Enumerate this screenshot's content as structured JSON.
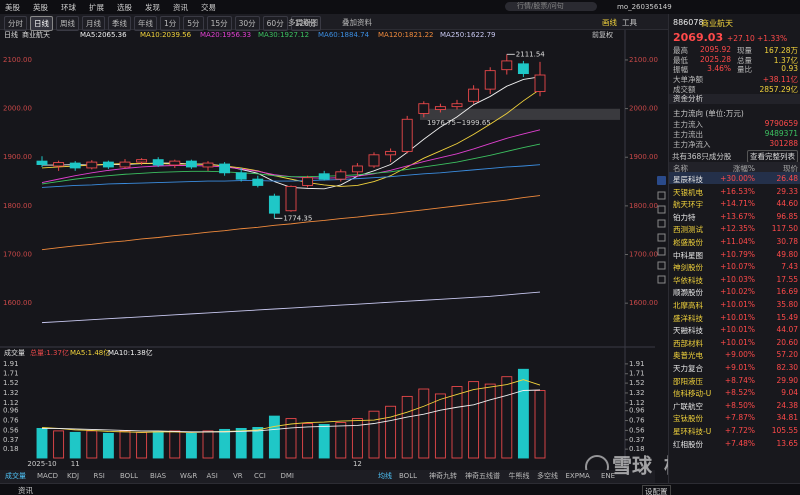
{
  "menu": [
    "美股",
    "英股",
    "环球",
    "扩展",
    "选股",
    "发现",
    "资讯",
    "交易"
  ],
  "search_placeholder": "行情/股票/问句",
  "user": "mo_260356149",
  "periods": [
    "分时",
    "日线",
    "周线",
    "月线",
    "季线",
    "年线",
    "1分",
    "5分",
    "15分",
    "30分",
    "60分",
    "120分"
  ],
  "multi_period": "多周期图",
  "overlay": "叠加资料",
  "toolbar_right": [
    "画线",
    "工具"
  ],
  "add_watch": "加自选",
  "chart_data": [
    {
      "type": "candlestick",
      "title": "日线",
      "name": "商业航天",
      "adjust": "前复权",
      "up_color": "#e8484a",
      "down_color": "#1fc7c7",
      "ylim": [
        1514,
        2141
      ],
      "yticks": [
        {
          "value": 2100,
          "label": "2100.00"
        },
        {
          "value": 2000,
          "label": "2000.00"
        },
        {
          "value": 1900,
          "label": "1900.00"
        },
        {
          "value": 1800,
          "label": "1800.00"
        },
        {
          "value": 1700,
          "label": "1700.00"
        },
        {
          "value": 1600,
          "label": "1600.00"
        }
      ],
      "candles": [
        {
          "open": 1892,
          "high": 1902,
          "low": 1880,
          "close": 1885
        },
        {
          "open": 1882,
          "high": 1893,
          "low": 1872,
          "close": 1889
        },
        {
          "open": 1888,
          "high": 1892,
          "low": 1872,
          "close": 1878
        },
        {
          "open": 1878,
          "high": 1894,
          "low": 1875,
          "close": 1890
        },
        {
          "open": 1890,
          "high": 1893,
          "low": 1876,
          "close": 1880
        },
        {
          "open": 1880,
          "high": 1896,
          "low": 1876,
          "close": 1890
        },
        {
          "open": 1890,
          "high": 1898,
          "low": 1884,
          "close": 1895
        },
        {
          "open": 1895,
          "high": 1900,
          "low": 1880,
          "close": 1884
        },
        {
          "open": 1884,
          "high": 1895,
          "low": 1878,
          "close": 1892
        },
        {
          "open": 1892,
          "high": 1895,
          "low": 1876,
          "close": 1880
        },
        {
          "open": 1880,
          "high": 1892,
          "low": 1872,
          "close": 1888
        },
        {
          "open": 1886,
          "high": 1890,
          "low": 1862,
          "close": 1868
        },
        {
          "open": 1868,
          "high": 1878,
          "low": 1850,
          "close": 1855
        },
        {
          "open": 1855,
          "high": 1862,
          "low": 1838,
          "close": 1842
        },
        {
          "open": 1820,
          "high": 1825,
          "low": 1774.35,
          "close": 1785
        },
        {
          "open": 1790,
          "high": 1842,
          "low": 1788,
          "close": 1840
        },
        {
          "open": 1842,
          "high": 1862,
          "low": 1838,
          "close": 1858
        },
        {
          "open": 1866,
          "high": 1872,
          "low": 1852,
          "close": 1855
        },
        {
          "open": 1855,
          "high": 1875,
          "low": 1850,
          "close": 1870
        },
        {
          "open": 1870,
          "high": 1888,
          "low": 1862,
          "close": 1882
        },
        {
          "open": 1882,
          "high": 1910,
          "low": 1878,
          "close": 1905
        },
        {
          "open": 1905,
          "high": 1918,
          "low": 1890,
          "close": 1912
        },
        {
          "open": 1912,
          "high": 1985,
          "low": 1908,
          "close": 1978
        },
        {
          "open": 1990,
          "high": 2015,
          "low": 1982,
          "close": 2010
        },
        {
          "open": 1998,
          "high": 2010,
          "low": 1992,
          "close": 2004
        },
        {
          "open": 2004,
          "high": 2018,
          "low": 1998,
          "close": 2010
        },
        {
          "open": 2015,
          "high": 2048,
          "low": 2010,
          "close": 2040
        },
        {
          "open": 2040,
          "high": 2085,
          "low": 2030,
          "close": 2078
        },
        {
          "open": 2080,
          "high": 2111.54,
          "low": 2070,
          "close": 2098
        },
        {
          "open": 2092,
          "high": 2098,
          "low": 2065,
          "close": 2072
        },
        {
          "open": 2035,
          "high": 2095.92,
          "low": 2025.28,
          "close": 2069.03
        }
      ],
      "series": [
        {
          "name": "MA5:2065.36",
          "color": "#f0f0f0",
          "values": [
            1884,
            1884,
            1885,
            1884,
            1885,
            1885,
            1887,
            1888,
            1888,
            1886,
            1886,
            1882,
            1875,
            1867,
            1850,
            1838,
            1836,
            1835,
            1843,
            1861,
            1872,
            1885,
            1910,
            1937,
            1962,
            1983,
            2008,
            2025,
            2046,
            2060,
            2065.36
          ]
        },
        {
          "name": "MA10:2039.56",
          "color": "#f2d33c",
          "values": [
            1878,
            1880,
            1882,
            1884,
            1886,
            1887,
            1887,
            1887,
            1886,
            1886,
            1885,
            1882,
            1878,
            1872,
            1862,
            1855,
            1848,
            1843,
            1840,
            1842,
            1850,
            1862,
            1880,
            1898,
            1913,
            1928,
            1947,
            1968,
            1990,
            2016,
            2039.56
          ]
        },
        {
          "name": "MA20:1956.33",
          "color": "#e040d0",
          "values": [
            1848,
            1855,
            1862,
            1868,
            1873,
            1877,
            1880,
            1882,
            1883,
            1883,
            1882,
            1880,
            1876,
            1871,
            1864,
            1860,
            1858,
            1857,
            1858,
            1861,
            1866,
            1873,
            1882,
            1891,
            1899,
            1907,
            1917,
            1928,
            1939,
            1948,
            1956.33
          ]
        },
        {
          "name": "MA30:1927.12",
          "color": "#3cc060",
          "values": [
            1845,
            1850,
            1855,
            1859,
            1862,
            1865,
            1867,
            1869,
            1870,
            1871,
            1871,
            1870,
            1868,
            1866,
            1862,
            1860,
            1860,
            1861,
            1862,
            1864,
            1867,
            1870,
            1875,
            1880,
            1885,
            1890,
            1897,
            1904,
            1912,
            1920,
            1927.12
          ]
        },
        {
          "name": "MA60:1884.74",
          "color": "#3b8de0",
          "values": [
            1838,
            1840,
            1842,
            1843,
            1845,
            1846,
            1847,
            1848,
            1849,
            1850,
            1851,
            1851,
            1852,
            1852,
            1851,
            1851,
            1852,
            1853,
            1854,
            1856,
            1858,
            1860,
            1863,
            1866,
            1868,
            1871,
            1874,
            1877,
            1880,
            1882,
            1884.74
          ]
        },
        {
          "name": "MA120:1821.22",
          "color": "#f08a3c",
          "values": [
            1710,
            1714,
            1718,
            1721,
            1725,
            1728,
            1732,
            1735,
            1739,
            1742,
            1746,
            1749,
            1753,
            1756,
            1760,
            1763,
            1767,
            1770,
            1774,
            1777,
            1781,
            1784,
            1788,
            1792,
            1796,
            1800,
            1804,
            1808,
            1812,
            1817,
            1821.22
          ]
        },
        {
          "name": "MA250:1622.79",
          "color": "#c8c8f0",
          "values": [
            1560,
            1562,
            1564,
            1566,
            1568,
            1570,
            1572,
            1574,
            1576,
            1578,
            1580,
            1582,
            1584,
            1586,
            1588,
            1590,
            1592,
            1594,
            1596,
            1598,
            1600,
            1602,
            1604,
            1606,
            1608,
            1610,
            1612,
            1614,
            1617,
            1620,
            1622.79
          ]
        }
      ],
      "band": {
        "low": 1976.75,
        "high": 1999.65
      },
      "band_label": "1976.75~1999.65"
    },
    {
      "type": "bar",
      "title": "成交量",
      "total_label": "总量:1.37亿",
      "ylim": [
        0,
        2.07
      ],
      "yticks": [
        1.91,
        1.71,
        1.52,
        1.32,
        1.12,
        0.96,
        0.76,
        0.56,
        0.37,
        0.18
      ],
      "categories": [
        "2025-10",
        null,
        "11",
        null,
        null,
        null,
        null,
        null,
        null,
        null,
        null,
        null,
        null,
        null,
        null,
        null,
        null,
        null,
        null,
        "12",
        null,
        null,
        null,
        null,
        null,
        null,
        null,
        null,
        null,
        null,
        null
      ],
      "values": [
        0.6,
        0.55,
        0.52,
        0.55,
        0.5,
        0.55,
        0.52,
        0.53,
        0.55,
        0.5,
        0.55,
        0.58,
        0.6,
        0.62,
        0.85,
        0.8,
        0.7,
        0.68,
        0.72,
        0.8,
        0.95,
        1.05,
        1.25,
        1.4,
        1.3,
        1.45,
        1.55,
        1.5,
        1.65,
        1.8,
        1.37
      ],
      "series": [
        {
          "name": "MA5:1.48亿",
          "color": "#f2d33c",
          "values": [
            0.62,
            0.6,
            0.57,
            0.56,
            0.54,
            0.53,
            0.52,
            0.53,
            0.53,
            0.52,
            0.53,
            0.54,
            0.55,
            0.57,
            0.64,
            0.69,
            0.72,
            0.73,
            0.75,
            0.76,
            0.77,
            0.83,
            0.93,
            1.05,
            1.19,
            1.29,
            1.39,
            1.44,
            1.49,
            1.59,
            1.48
          ]
        },
        {
          "name": "MA10:1.38亿",
          "color": "#f0f0f0",
          "values": [
            0.6,
            0.6,
            0.59,
            0.58,
            0.57,
            0.56,
            0.55,
            0.55,
            0.54,
            0.53,
            0.53,
            0.53,
            0.54,
            0.55,
            0.58,
            0.61,
            0.63,
            0.64,
            0.65,
            0.66,
            0.7,
            0.76,
            0.83,
            0.89,
            0.97,
            1.03,
            1.08,
            1.18,
            1.27,
            1.37,
            1.38
          ]
        }
      ]
    }
  ],
  "indicator_tabs": [
    "成交量",
    "MACD",
    "KDJ",
    "RSI",
    "BOLL",
    "BIAS",
    "W&R",
    "ASI",
    "VR",
    "CCI",
    "DMI"
  ],
  "overlay_tabs": [
    "均线",
    "BOLL",
    "神奇九转",
    "神奇五线谱",
    "牛熊线",
    "多空线",
    "EXPMA",
    "ENE"
  ],
  "quote": {
    "code": "886078",
    "name": "商业航天",
    "price": "2069.03",
    "change": "+27.10",
    "pct": "+1.33%",
    "rows": [
      [
        "最高",
        "2095.92",
        "现量",
        "167.28万"
      ],
      [
        "最低",
        "2025.28",
        "总量",
        "1.37亿"
      ],
      [
        "振幅",
        "3.46%",
        "量比",
        "0.93"
      ]
    ],
    "single_rows": [
      [
        "大单净额",
        "+38.11亿"
      ],
      [
        "成交额",
        "2857.29亿"
      ]
    ]
  },
  "funds": {
    "title": "资金分析",
    "subtitle": "主力流向 (单位:万元)",
    "rows": [
      [
        "主力流入",
        "9790659"
      ],
      [
        "主力流出",
        "9489371"
      ],
      [
        "主力净流入",
        "301288"
      ]
    ]
  },
  "constituents": {
    "count": "共有368只成分股",
    "button": "查看完整列表",
    "header": [
      "名称",
      "涨幅%",
      "现价"
    ],
    "rows": [
      [
        "星辰科技",
        "+30.00%",
        "26.48"
      ],
      [
        "天银机电",
        "+16.53%",
        "29.33"
      ],
      [
        "航天环宇",
        "+14.71%",
        "44.60"
      ],
      [
        "铂力特",
        "+13.67%",
        "96.85"
      ],
      [
        "西测测试",
        "+12.35%",
        "117.50"
      ],
      [
        "崧盛股份",
        "+11.04%",
        "30.78"
      ],
      [
        "中科星图",
        "+10.79%",
        "49.80"
      ],
      [
        "神剑股份",
        "+10.07%",
        "7.43"
      ],
      [
        "华依科技",
        "+10.03%",
        "17.55"
      ],
      [
        "顺灏股份",
        "+10.02%",
        "16.69"
      ],
      [
        "北摩高科",
        "+10.01%",
        "35.80"
      ],
      [
        "盛洋科技",
        "+10.01%",
        "15.49"
      ],
      [
        "天融科技",
        "+10.01%",
        "44.07"
      ],
      [
        "西部材料",
        "+10.01%",
        "20.60"
      ],
      [
        "奥普光电",
        "+9.00%",
        "57.20"
      ],
      [
        "天力复合",
        "+9.01%",
        "82.30"
      ],
      [
        "邵阳液压",
        "+8.74%",
        "29.90"
      ],
      [
        "信科移动-U",
        "+8.52%",
        "9.04"
      ],
      [
        "广联航空",
        "+8.50%",
        "24.38"
      ],
      [
        "宝钛股份",
        "+7.87%",
        "34.81"
      ],
      [
        "星环科技-U",
        "+7.72%",
        "105.55"
      ],
      [
        "红相股份",
        "+7.48%",
        "13.65"
      ]
    ]
  },
  "watermark": [
    "雪球",
    "柚子叔叔"
  ],
  "status": {
    "left": "资讯",
    "right": "设配置"
  }
}
